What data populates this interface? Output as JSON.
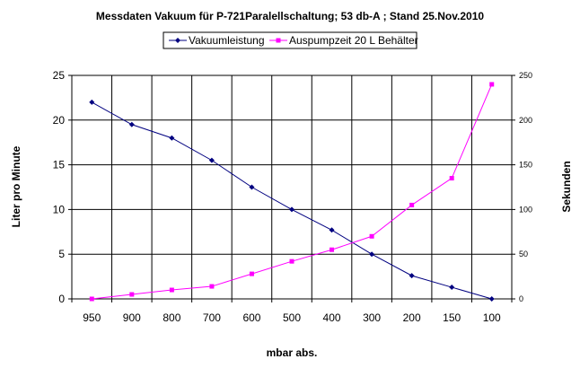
{
  "chart_data": {
    "type": "line",
    "title": "Messdaten Vakuum für P-721Paralellschaltung; 53 db-A ; Stand 25.Nov.2010",
    "xlabel": "mbar abs.",
    "ylabel_left": "Liter pro Minute",
    "ylabel_right": "Sekunden",
    "categories": [
      "950",
      "900",
      "800",
      "700",
      "600",
      "500",
      "400",
      "300",
      "200",
      "150",
      "100"
    ],
    "y_left_lim": [
      0,
      25
    ],
    "y_left_ticks": [
      "0",
      "5",
      "10",
      "15",
      "20",
      "25"
    ],
    "y_right_lim": [
      0,
      250
    ],
    "y_right_ticks": [
      "0",
      "50",
      "100",
      "150",
      "200",
      "250"
    ],
    "grid": true,
    "legend_position": "top",
    "series": [
      {
        "name": "Vakuumleistung",
        "axis": "left",
        "color": "#000080",
        "marker": "diamond",
        "values": [
          22,
          19.5,
          18,
          15.5,
          12.5,
          10,
          7.7,
          5,
          2.6,
          1.3,
          0
        ]
      },
      {
        "name": "Auspumpzeit 20 L Behälter",
        "axis": "right",
        "color": "#ff00ff",
        "marker": "square",
        "values": [
          0,
          5,
          10,
          14,
          28,
          42,
          55,
          70,
          105,
          135,
          240
        ]
      }
    ]
  }
}
